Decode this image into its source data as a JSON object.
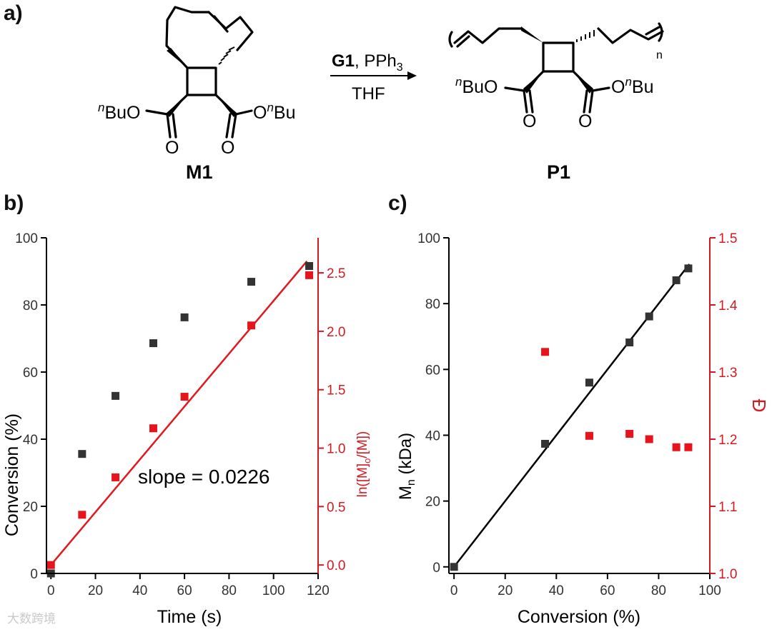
{
  "panels": {
    "a": "a)",
    "b": "b)",
    "c": "c)"
  },
  "scheme": {
    "monomer_label": "M1",
    "polymer_label": "P1",
    "reagent_bold": "G1",
    "reagent_rest": ", PPh",
    "reagent_sub": "3",
    "solvent": "THF",
    "ester_left_prefix": "n",
    "ester_left_rest": "BuO",
    "ester_right_o": "O",
    "ester_right_prefix": "n",
    "ester_right_rest": "Bu",
    "carbonyl_o": "O",
    "repeat_n": "n"
  },
  "colors": {
    "black_series": "#333333",
    "red_series": "#e8141b",
    "red_axis": "#d41920",
    "fit_black": "#000000",
    "fit_red": "#e0191f"
  },
  "watermark": "大数跨境",
  "chart_data": [
    {
      "id": "b",
      "type": "scatter",
      "xlabel": "Time (s)",
      "ylabel": "Conversion (%)",
      "y2label": "ln([M]o/[M])",
      "xlim": [
        -2,
        120
      ],
      "ylim": [
        0,
        100
      ],
      "y2lim": [
        -0.0722,
        2.8
      ],
      "xticks": [
        0,
        20,
        40,
        60,
        80,
        100,
        120
      ],
      "yticks": [
        0,
        20,
        40,
        60,
        80,
        100
      ],
      "y2ticks": [
        0.0,
        0.5,
        1.0,
        1.5,
        2.0,
        2.5
      ],
      "y2tick_labels": [
        "0.0",
        "0.5",
        "1.0",
        "1.5",
        "2.0",
        "2.5"
      ],
      "series": [
        {
          "name": "Conversion (%)",
          "axis": "y",
          "x": [
            0,
            14,
            29,
            46,
            60,
            90,
            116
          ],
          "values": [
            0,
            35.6,
            52.9,
            68.6,
            76.3,
            86.9,
            91.6
          ]
        },
        {
          "name": "ln([M]o/[M])",
          "axis": "y2",
          "x": [
            0,
            14,
            29,
            46,
            60,
            90,
            116
          ],
          "values": [
            0.0,
            0.43,
            0.75,
            1.17,
            1.44,
            2.05,
            2.48
          ]
        }
      ],
      "fit": {
        "axis": "y2",
        "x": [
          0,
          115
        ],
        "y": [
          0.0,
          2.6
        ],
        "annotation": "slope = 0.0226"
      },
      "grid": false
    },
    {
      "id": "c",
      "type": "scatter",
      "xlabel": "Conversion (%)",
      "ylabel": "Mn (kDa)",
      "y2label": "Đ",
      "xlim": [
        -2,
        100
      ],
      "ylim": [
        -2,
        100
      ],
      "y2lim": [
        1.0,
        1.5
      ],
      "xticks": [
        0,
        20,
        40,
        60,
        80,
        100
      ],
      "yticks": [
        0,
        20,
        40,
        60,
        80,
        100
      ],
      "y2ticks": [
        1.0,
        1.1,
        1.2,
        1.3,
        1.4,
        1.5
      ],
      "y2tick_labels": [
        "1.0",
        "1.1",
        "1.2",
        "1.3",
        "1.4",
        "1.5"
      ],
      "series": [
        {
          "name": "Mn (kDa)",
          "axis": "y",
          "x": [
            0,
            35.6,
            52.9,
            68.6,
            76.3,
            86.9,
            91.6
          ],
          "values": [
            0,
            37.4,
            56.0,
            68.2,
            76.1,
            87.1,
            90.7
          ]
        },
        {
          "name": "Đ",
          "axis": "y2",
          "x": [
            35.6,
            52.9,
            68.6,
            76.3,
            86.9,
            91.6
          ],
          "values": [
            1.33,
            1.205,
            1.208,
            1.2,
            1.188,
            1.188
          ]
        }
      ],
      "fit": {
        "axis": "y",
        "x": [
          0,
          92
        ],
        "y": [
          0,
          92
        ]
      },
      "grid": false
    }
  ]
}
